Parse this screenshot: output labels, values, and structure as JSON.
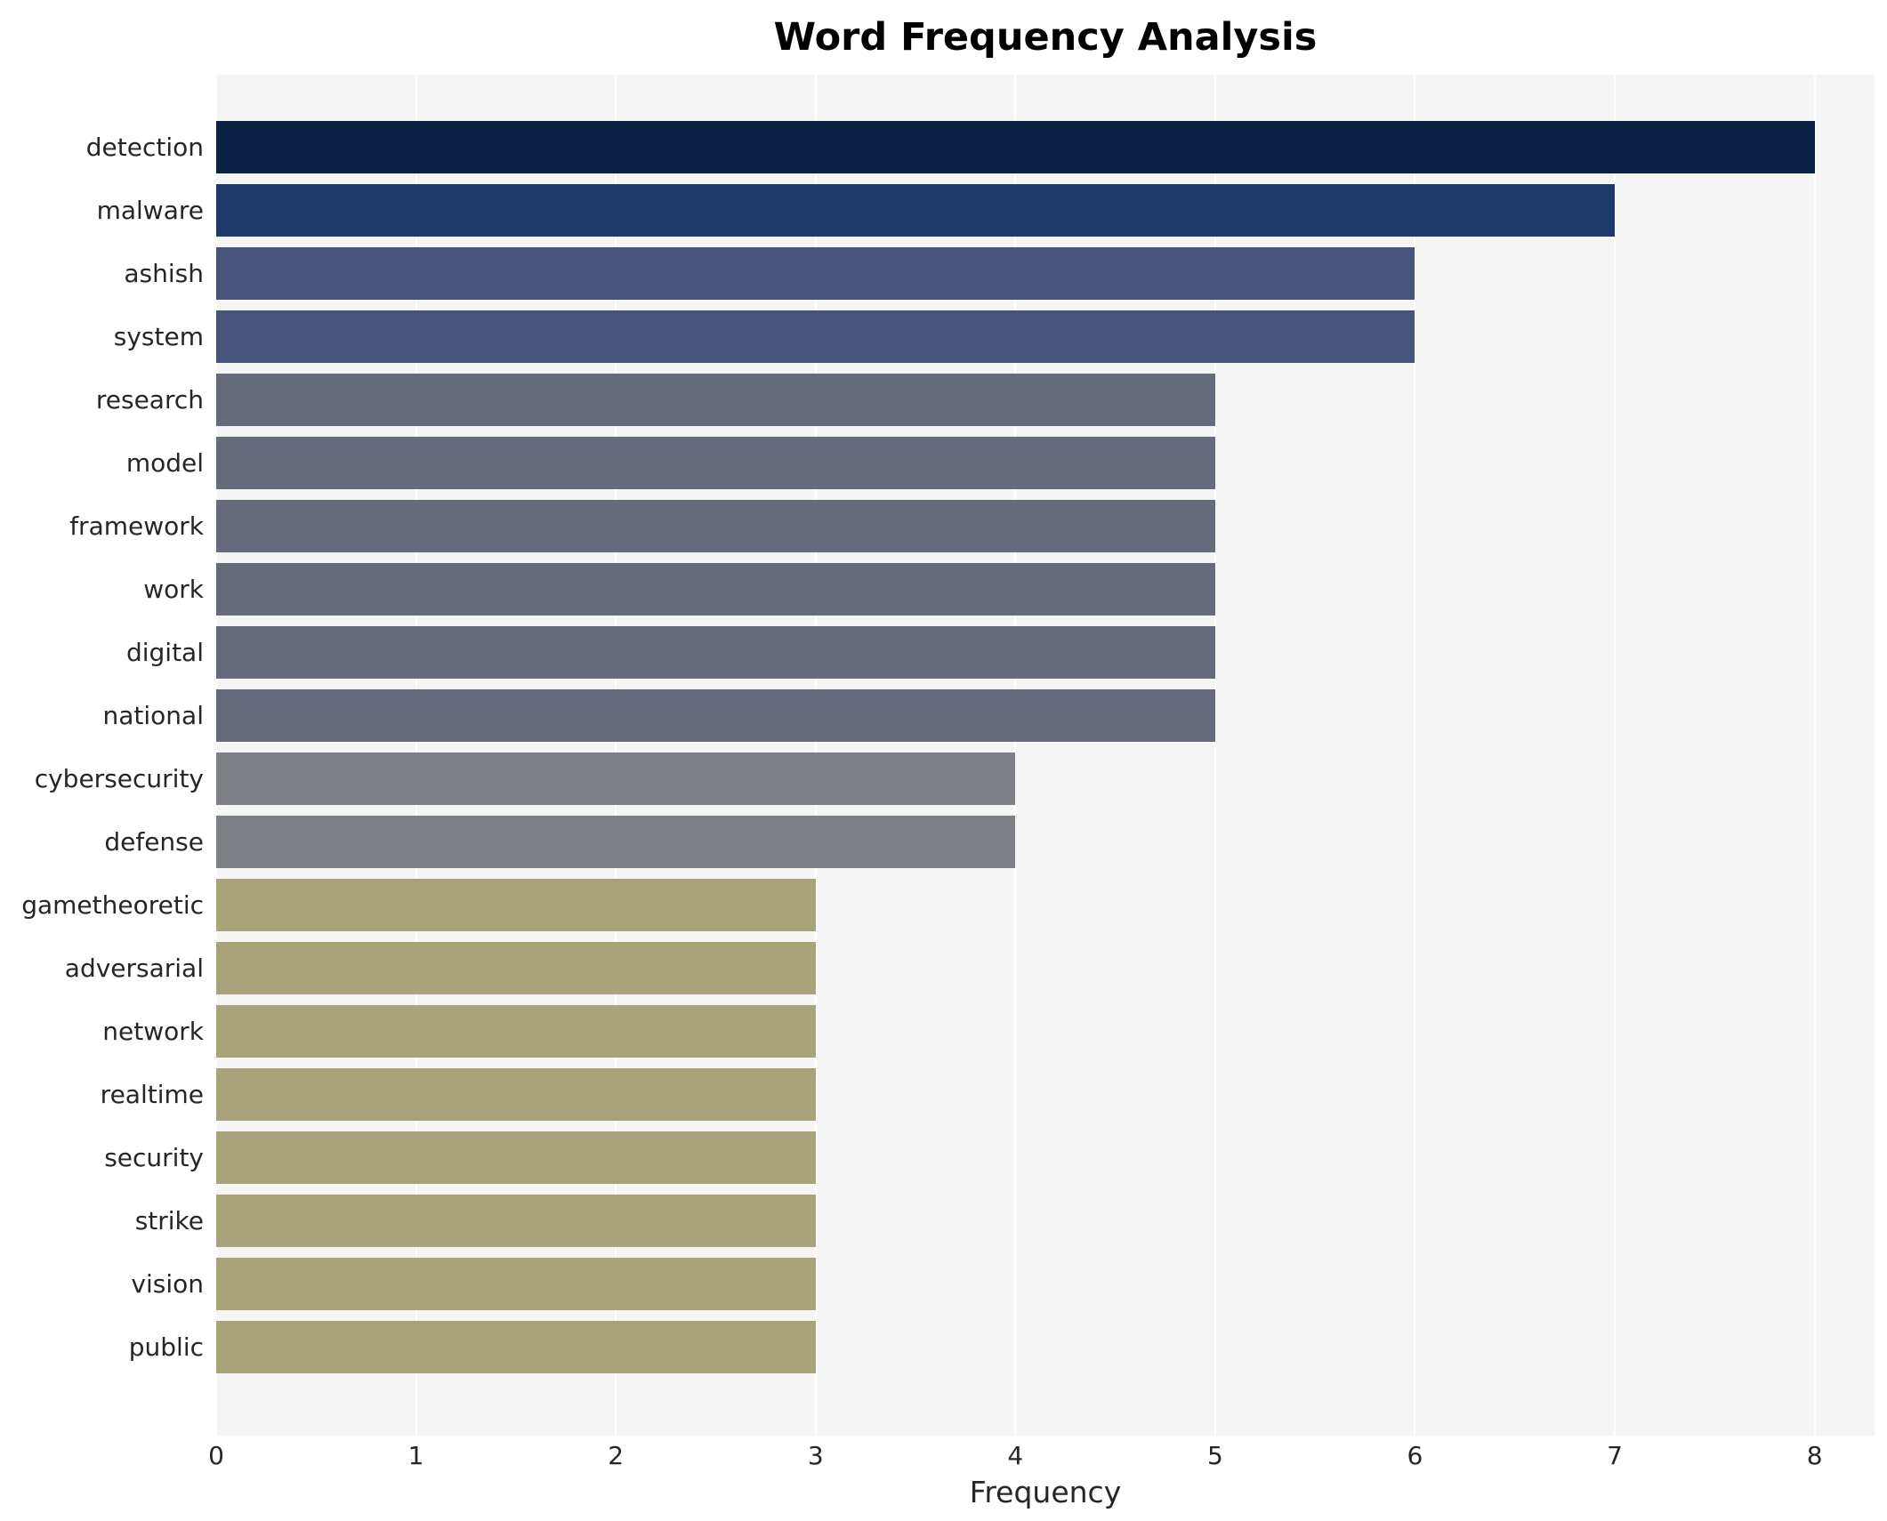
{
  "chart_data": {
    "type": "bar",
    "orientation": "horizontal",
    "title": "Word Frequency Analysis",
    "xlabel": "Frequency",
    "ylabel": "",
    "xlim": [
      0,
      8.3
    ],
    "x_ticks": [
      0,
      1,
      2,
      3,
      4,
      5,
      6,
      7,
      8
    ],
    "grid": true,
    "legend": "none",
    "plot_background": "#f5f5f6",
    "gridline_color": "#ffffff",
    "categories": [
      "detection",
      "malware",
      "ashish",
      "system",
      "research",
      "model",
      "framework",
      "work",
      "digital",
      "national",
      "cybersecurity",
      "defense",
      "gametheoretic",
      "adversarial",
      "network",
      "realtime",
      "security",
      "strike",
      "vision",
      "public"
    ],
    "values": [
      8,
      7,
      6,
      6,
      5,
      5,
      5,
      5,
      5,
      5,
      4,
      4,
      3,
      3,
      3,
      3,
      3,
      3,
      3,
      3
    ],
    "bar_colors": [
      "#0a2144",
      "#1e3a6b",
      "#475479",
      "#475479",
      "#666b7b",
      "#666b7b",
      "#666b7b",
      "#666b7b",
      "#666b7b",
      "#666b7b",
      "#7e8087",
      "#7e8087",
      "#a8a37b",
      "#a8a37b",
      "#a8a37b",
      "#a8a37b",
      "#a8a37b",
      "#a8a37b",
      "#a8a37b",
      "#a8a37b"
    ]
  }
}
